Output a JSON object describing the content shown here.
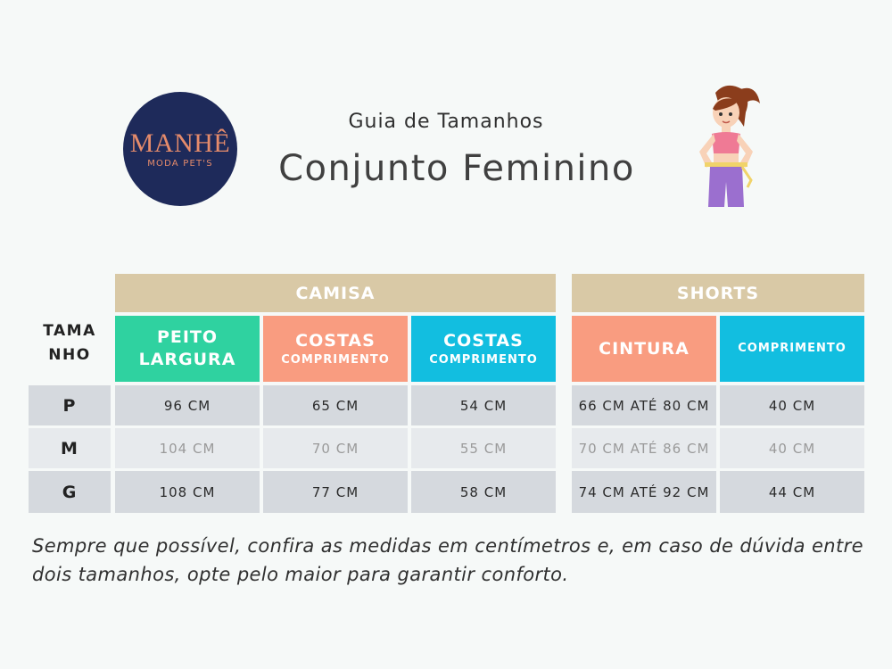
{
  "logo": {
    "main": "MANHÊ",
    "sub": "MODA PET'S"
  },
  "header": {
    "subtitle": "Guia de Tamanhos",
    "title": "Conjunto Feminino"
  },
  "table": {
    "size_header": [
      "TAMA",
      "NHO"
    ],
    "groups": {
      "camisa": "CAMISA",
      "shorts": "SHORTS"
    },
    "columns": [
      {
        "main": "PEITO",
        "main2": "LARGURA",
        "sub": ""
      },
      {
        "main": "COSTAS",
        "sub": "COMPRIMENTO"
      },
      {
        "main": "COSTAS",
        "sub": "COMPRIMENTO"
      },
      {
        "main": "CINTURA",
        "sub": ""
      },
      {
        "main": "",
        "sub": "COMPRIMENTO"
      }
    ],
    "rows": [
      {
        "size": "P",
        "values": [
          "96 CM",
          "65 CM",
          "54 CM",
          "66 CM ATÉ 80 CM",
          "40 CM"
        ]
      },
      {
        "size": "M",
        "values": [
          "104 CM",
          "70 CM",
          "55 CM",
          "70 CM ATÉ 86 CM",
          "40 CM"
        ]
      },
      {
        "size": "G",
        "values": [
          "108 CM",
          "77 CM",
          "58 CM",
          "74 CM ATÉ 92 CM",
          "44 CM"
        ]
      }
    ]
  },
  "note": "Sempre que possível, confira as medidas em centímetros e, em caso de dúvida entre dois tamanhos, opte pelo maior para garantir conforto.",
  "colors": {
    "beige": "#d9c9a6",
    "teal": "#2fd2a0",
    "orange": "#f99c80",
    "blue": "#12bee0",
    "navy": "#1e2a5a"
  }
}
